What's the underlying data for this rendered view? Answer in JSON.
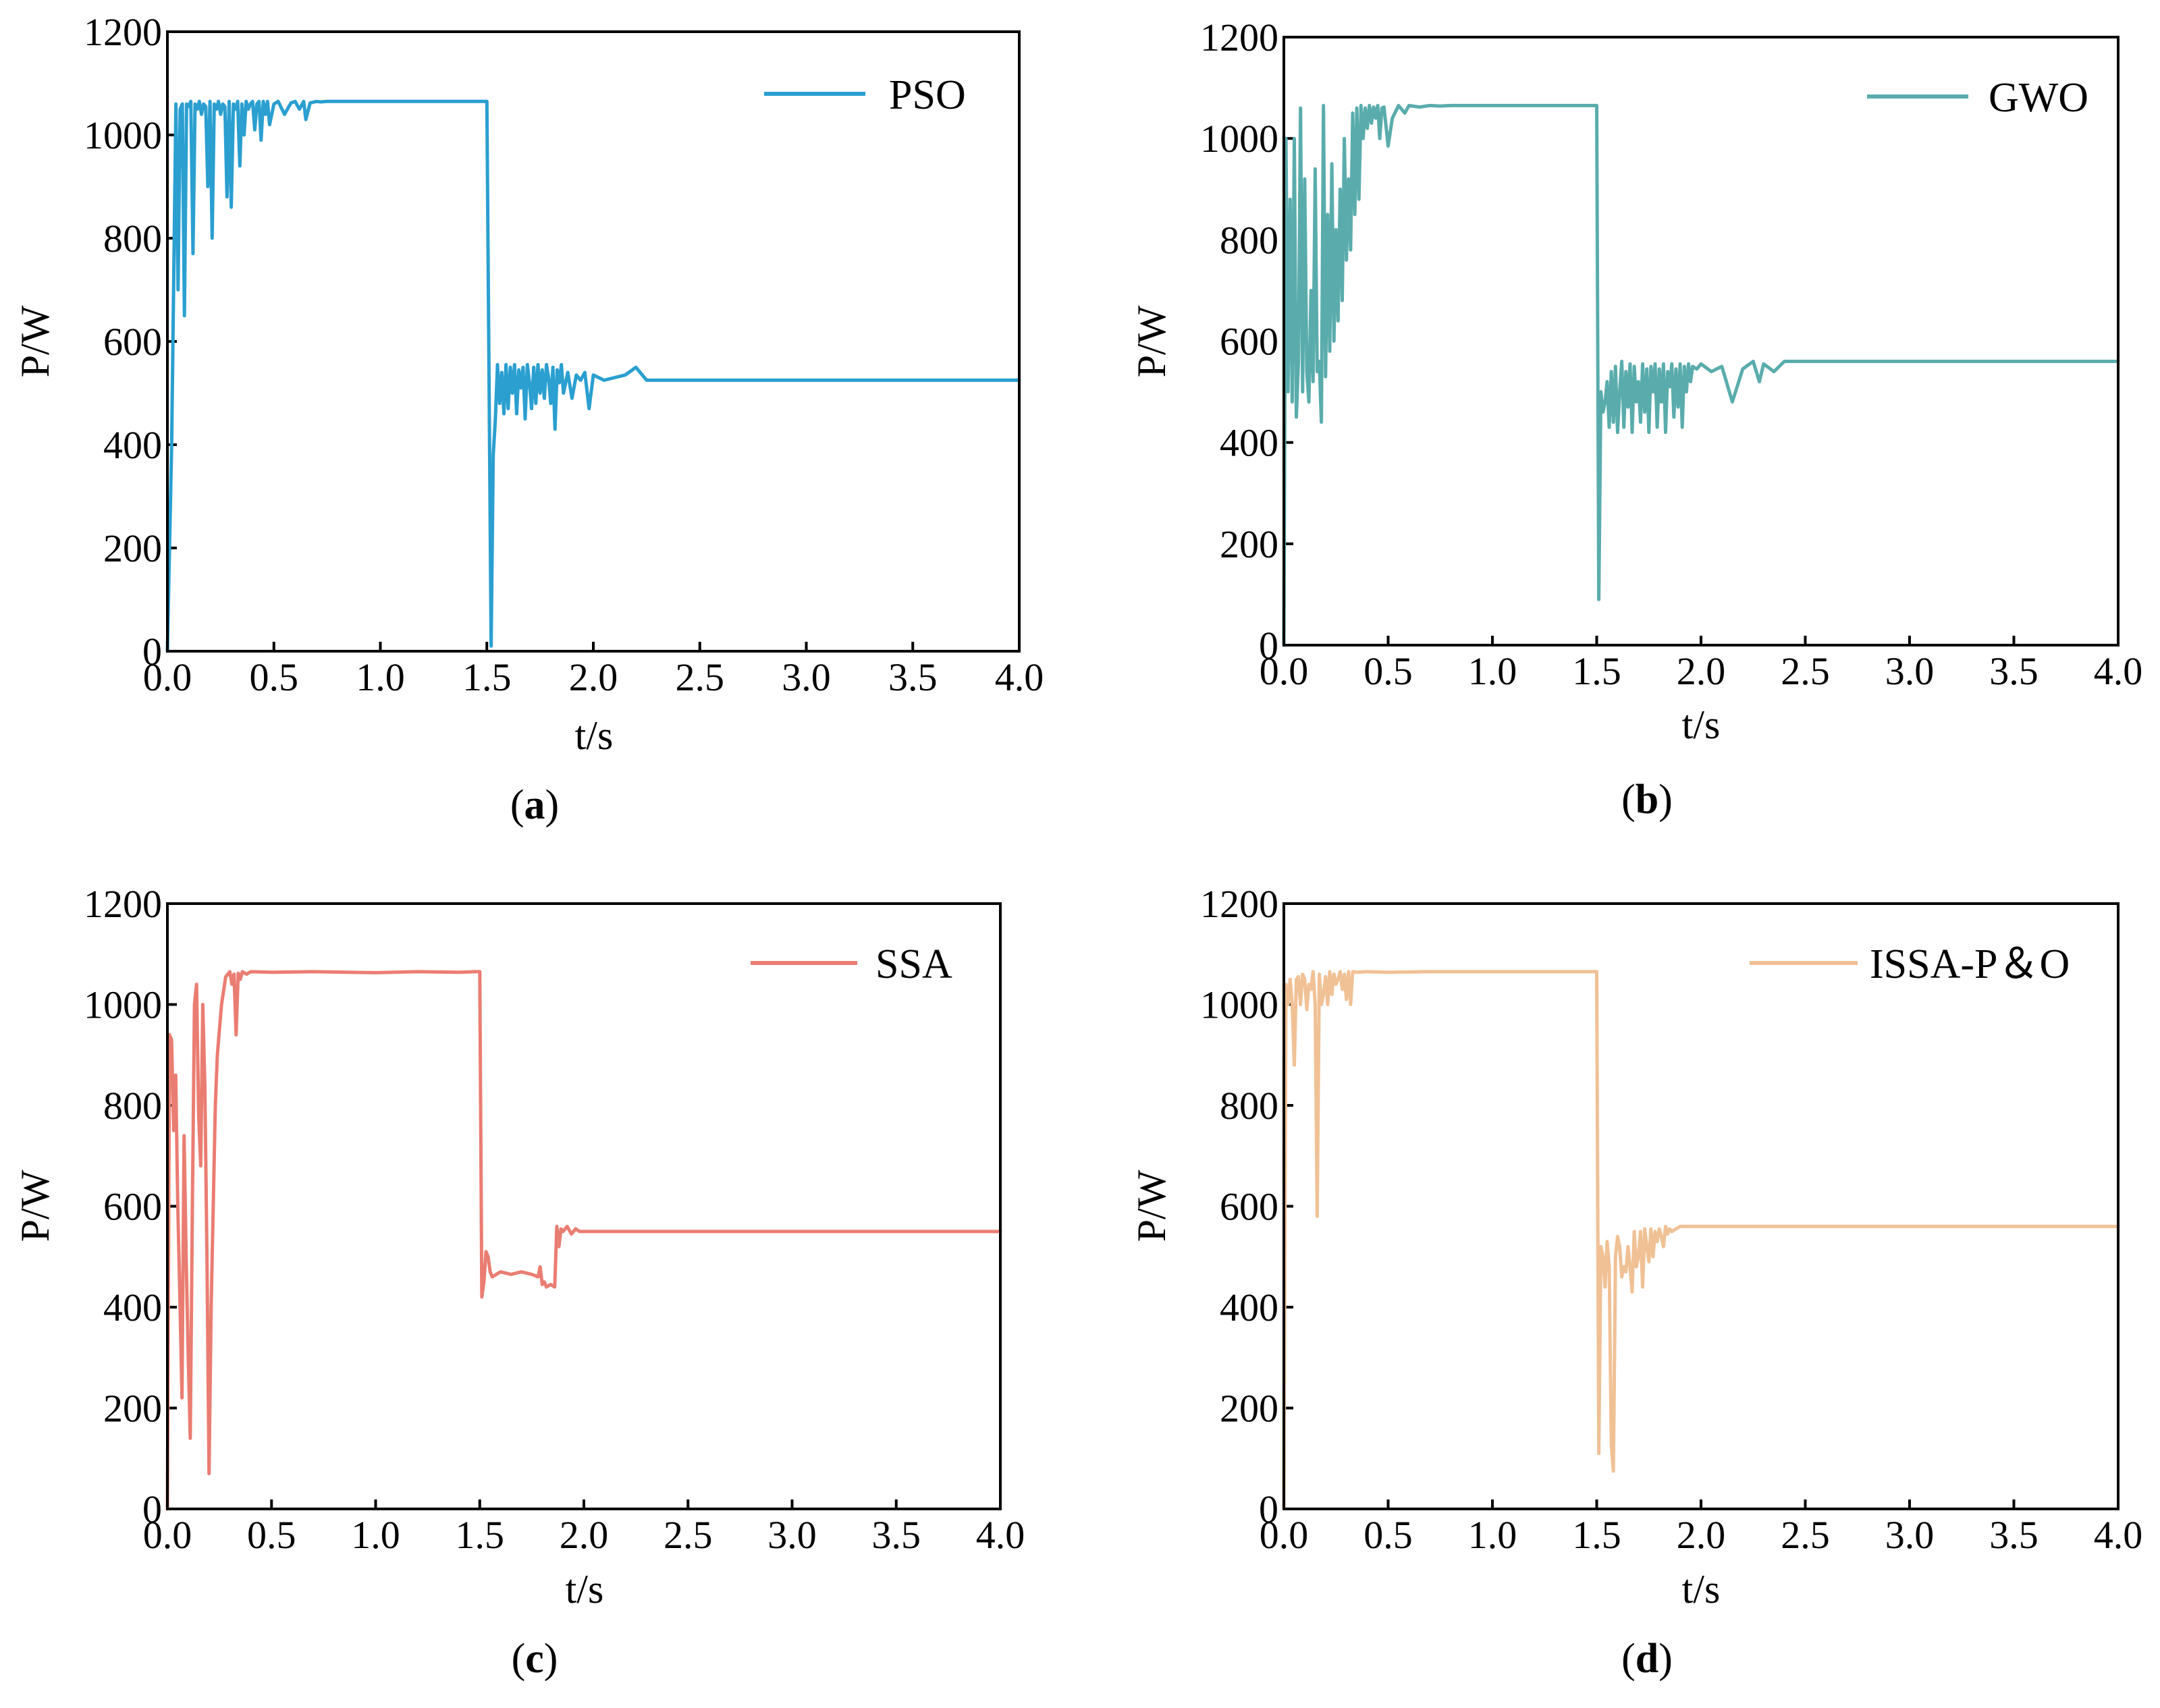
{
  "chart_data": [
    {
      "type": "line",
      "panel": "a",
      "caption_open": "(",
      "caption_letter": "a",
      "caption_close": ")",
      "xlabel": "t/s",
      "ylabel": "P/W",
      "xlim": [
        0,
        4.0
      ],
      "ylim": [
        0,
        1200
      ],
      "xticks": [
        "0.0",
        "0.5",
        "1.0",
        "1.5",
        "2.0",
        "2.5",
        "3.0",
        "3.5",
        "4.0"
      ],
      "yticks": [
        "0",
        "200",
        "400",
        "600",
        "800",
        "1000",
        "1200"
      ],
      "legend": "top-right",
      "color": "#2a9fd0",
      "series": [
        {
          "name": "PSO",
          "x": [
            0,
            0.02,
            0.04,
            0.05,
            0.06,
            0.07,
            0.08,
            0.09,
            0.1,
            0.11,
            0.12,
            0.13,
            0.14,
            0.15,
            0.16,
            0.17,
            0.18,
            0.19,
            0.2,
            0.21,
            0.22,
            0.23,
            0.24,
            0.25,
            0.26,
            0.27,
            0.28,
            0.29,
            0.3,
            0.31,
            0.32,
            0.33,
            0.34,
            0.35,
            0.36,
            0.37,
            0.38,
            0.39,
            0.4,
            0.41,
            0.42,
            0.43,
            0.44,
            0.45,
            0.46,
            0.47,
            0.48,
            0.5,
            0.52,
            0.55,
            0.58,
            0.6,
            0.62,
            0.64,
            0.65,
            0.67,
            0.7,
            0.72,
            0.75,
            0.8,
            1.0,
            1.2,
            1.4,
            1.49,
            1.5,
            1.52,
            1.53,
            1.54,
            1.55,
            1.56,
            1.57,
            1.58,
            1.59,
            1.6,
            1.61,
            1.62,
            1.63,
            1.64,
            1.65,
            1.66,
            1.67,
            1.68,
            1.69,
            1.7,
            1.71,
            1.72,
            1.73,
            1.74,
            1.75,
            1.76,
            1.77,
            1.78,
            1.79,
            1.8,
            1.81,
            1.82,
            1.83,
            1.84,
            1.85,
            1.86,
            1.88,
            1.9,
            1.92,
            1.94,
            1.96,
            1.98,
            2.0,
            2.05,
            2.1,
            2.15,
            2.2,
            2.22,
            2.25,
            2.3,
            2.5,
            3.0,
            3.5,
            4.0
          ],
          "y": [
            0,
            400,
            1060,
            700,
            1050,
            1060,
            650,
            1060,
            1055,
            1065,
            770,
            1060,
            1050,
            1065,
            1040,
            1060,
            1055,
            900,
            1065,
            800,
            1060,
            1050,
            1065,
            1040,
            1060,
            1055,
            880,
            1065,
            860,
            1060,
            1050,
            1065,
            940,
            1060,
            1000,
            1065,
            1050,
            1060,
            1065,
            1010,
            1060,
            1065,
            990,
            1065,
            1040,
            1065,
            1020,
            1060,
            1065,
            1040,
            1062,
            1065,
            1050,
            1065,
            1030,
            1062,
            1065,
            1064,
            1065,
            1065,
            1065,
            1065,
            1065,
            1065,
            1065,
            10,
            380,
            450,
            555,
            480,
            540,
            460,
            555,
            470,
            550,
            500,
            555,
            460,
            545,
            510,
            550,
            450,
            555,
            520,
            470,
            550,
            480,
            555,
            500,
            545,
            490,
            555,
            530,
            480,
            550,
            430,
            545,
            520,
            555,
            500,
            540,
            490,
            535,
            525,
            540,
            470,
            535,
            525,
            530,
            535,
            550,
            540,
            525,
            525,
            525,
            525,
            525,
            525
          ]
        }
      ]
    },
    {
      "type": "line",
      "panel": "b",
      "caption_open": "(",
      "caption_letter": "b",
      "caption_close": ")",
      "xlabel": "t/s",
      "ylabel": "P/W",
      "xlim": [
        0,
        4.0
      ],
      "ylim": [
        0,
        1200
      ],
      "xticks": [
        "0.0",
        "0.5",
        "1.0",
        "1.5",
        "2.0",
        "2.5",
        "3.0",
        "3.5",
        "4.0"
      ],
      "yticks": [
        "0",
        "200",
        "400",
        "600",
        "800",
        "1000",
        "1200"
      ],
      "legend": "top-right",
      "color": "#5aacac",
      "series": [
        {
          "name": "GWO",
          "x": [
            0,
            0.01,
            0.02,
            0.03,
            0.04,
            0.05,
            0.06,
            0.07,
            0.08,
            0.09,
            0.1,
            0.11,
            0.12,
            0.13,
            0.14,
            0.15,
            0.16,
            0.17,
            0.18,
            0.19,
            0.2,
            0.21,
            0.22,
            0.23,
            0.24,
            0.25,
            0.26,
            0.27,
            0.28,
            0.29,
            0.3,
            0.31,
            0.32,
            0.33,
            0.34,
            0.35,
            0.36,
            0.37,
            0.38,
            0.39,
            0.4,
            0.41,
            0.42,
            0.43,
            0.44,
            0.45,
            0.46,
            0.47,
            0.48,
            0.5,
            0.52,
            0.55,
            0.58,
            0.6,
            0.65,
            0.7,
            0.75,
            0.8,
            1.0,
            1.2,
            1.4,
            1.49,
            1.5,
            1.51,
            1.52,
            1.53,
            1.54,
            1.55,
            1.56,
            1.57,
            1.58,
            1.59,
            1.6,
            1.61,
            1.62,
            1.63,
            1.64,
            1.65,
            1.66,
            1.67,
            1.68,
            1.69,
            1.7,
            1.71,
            1.72,
            1.73,
            1.74,
            1.75,
            1.76,
            1.77,
            1.78,
            1.79,
            1.8,
            1.81,
            1.82,
            1.83,
            1.84,
            1.85,
            1.86,
            1.87,
            1.88,
            1.89,
            1.9,
            1.91,
            1.92,
            1.93,
            1.94,
            1.95,
            1.96,
            1.98,
            2.0,
            2.05,
            2.1,
            2.15,
            2.2,
            2.25,
            2.28,
            2.3,
            2.35,
            2.4,
            2.5,
            3.0,
            3.5,
            4.0
          ],
          "y": [
            0,
            1000,
            500,
            880,
            480,
            1000,
            450,
            560,
            1060,
            500,
            920,
            540,
            480,
            700,
            520,
            940,
            540,
            560,
            440,
            1065,
            530,
            850,
            580,
            950,
            600,
            820,
            640,
            900,
            680,
            1000,
            760,
            920,
            780,
            1050,
            850,
            1060,
            880,
            1065,
            1000,
            1060,
            1020,
            1065,
            1030,
            1062,
            1040,
            1065,
            1000,
            1060,
            1062,
            985,
            1040,
            1065,
            1050,
            1065,
            1062,
            1065,
            1064,
            1065,
            1065,
            1065,
            1065,
            1065,
            1065,
            90,
            500,
            460,
            480,
            520,
            430,
            540,
            440,
            550,
            420,
            500,
            560,
            430,
            540,
            470,
            555,
            420,
            550,
            480,
            520,
            440,
            555,
            460,
            545,
            420,
            550,
            500,
            555,
            430,
            545,
            480,
            555,
            420,
            540,
            510,
            555,
            450,
            545,
            470,
            555,
            430,
            550,
            500,
            555,
            520,
            550,
            545,
            555,
            540,
            550,
            480,
            545,
            560,
            520,
            555,
            540,
            560,
            560,
            560,
            560,
            560
          ]
        }
      ]
    },
    {
      "type": "line",
      "panel": "c",
      "caption_open": "(",
      "caption_letter": "c",
      "caption_close": ")",
      "xlabel": "t/s",
      "ylabel": "P/W",
      "xlim": [
        0,
        4.0
      ],
      "ylim": [
        0,
        1200
      ],
      "xticks": [
        "0.0",
        "0.5",
        "1.0",
        "1.5",
        "2.0",
        "2.5",
        "3.0",
        "3.5",
        "4.0"
      ],
      "yticks": [
        "0",
        "200",
        "400",
        "600",
        "800",
        "1000",
        "1200"
      ],
      "legend": "top-right",
      "color": "#ea7d72",
      "series": [
        {
          "name": "SSA",
          "x": [
            0,
            0.01,
            0.02,
            0.03,
            0.04,
            0.05,
            0.06,
            0.07,
            0.08,
            0.09,
            0.1,
            0.11,
            0.12,
            0.13,
            0.14,
            0.15,
            0.16,
            0.17,
            0.18,
            0.19,
            0.2,
            0.21,
            0.22,
            0.23,
            0.24,
            0.26,
            0.28,
            0.3,
            0.31,
            0.32,
            0.33,
            0.34,
            0.35,
            0.36,
            0.38,
            0.4,
            0.5,
            0.7,
            1.0,
            1.2,
            1.4,
            1.48,
            1.49,
            1.5,
            1.51,
            1.52,
            1.53,
            1.54,
            1.55,
            1.56,
            1.58,
            1.6,
            1.65,
            1.7,
            1.75,
            1.78,
            1.79,
            1.8,
            1.81,
            1.82,
            1.84,
            1.86,
            1.87,
            1.88,
            1.89,
            1.9,
            1.92,
            1.94,
            1.96,
            1.98,
            2.0,
            2.05,
            2.1,
            2.15,
            2.2,
            2.3,
            2.5,
            3.0,
            3.5,
            4.0
          ],
          "y": [
            0,
            940,
            930,
            750,
            860,
            600,
            420,
            220,
            740,
            500,
            300,
            140,
            600,
            1000,
            1040,
            780,
            680,
            1000,
            840,
            500,
            70,
            400,
            600,
            800,
            900,
            1000,
            1055,
            1065,
            1040,
            1060,
            940,
            1062,
            1050,
            1065,
            1060,
            1065,
            1064,
            1065,
            1063,
            1065,
            1064,
            1065,
            1065,
            1065,
            420,
            450,
            510,
            500,
            470,
            460,
            465,
            470,
            465,
            470,
            465,
            460,
            480,
            445,
            450,
            440,
            445,
            440,
            560,
            520,
            555,
            550,
            560,
            545,
            555,
            550,
            550,
            550,
            550,
            550,
            550,
            550,
            550,
            550,
            550,
            550
          ]
        }
      ]
    },
    {
      "type": "line",
      "panel": "d",
      "caption_open": "(",
      "caption_letter": "d",
      "caption_close": ")",
      "xlabel": "t/s",
      "ylabel": "P/W",
      "xlim": [
        0,
        4.0
      ],
      "ylim": [
        0,
        1200
      ],
      "xticks": [
        "0.0",
        "0.5",
        "1.0",
        "1.5",
        "2.0",
        "2.5",
        "3.0",
        "3.5",
        "4.0"
      ],
      "yticks": [
        "0",
        "200",
        "400",
        "600",
        "800",
        "1000",
        "1200"
      ],
      "legend": "top-right",
      "color": "#f0c195",
      "series": [
        {
          "name": "ISSA-P＆O",
          "x": [
            0,
            0.01,
            0.02,
            0.03,
            0.04,
            0.05,
            0.06,
            0.07,
            0.08,
            0.09,
            0.1,
            0.11,
            0.12,
            0.13,
            0.14,
            0.15,
            0.16,
            0.17,
            0.18,
            0.19,
            0.2,
            0.21,
            0.22,
            0.23,
            0.24,
            0.25,
            0.26,
            0.27,
            0.28,
            0.29,
            0.3,
            0.31,
            0.32,
            0.33,
            0.35,
            0.4,
            0.5,
            0.7,
            1.0,
            1.2,
            1.4,
            1.49,
            1.5,
            1.51,
            1.52,
            1.53,
            1.54,
            1.55,
            1.56,
            1.57,
            1.58,
            1.59,
            1.6,
            1.61,
            1.62,
            1.63,
            1.64,
            1.65,
            1.66,
            1.67,
            1.68,
            1.69,
            1.7,
            1.71,
            1.72,
            1.73,
            1.74,
            1.75,
            1.76,
            1.77,
            1.78,
            1.79,
            1.8,
            1.81,
            1.82,
            1.83,
            1.84,
            1.85,
            1.86,
            1.88,
            1.9,
            2.0,
            2.5,
            3.0,
            3.5,
            4.0
          ],
          "y": [
            0,
            1040,
            1000,
            1050,
            1000,
            880,
            1050,
            1055,
            1000,
            1060,
            1050,
            990,
            1040,
            1030,
            1065,
            1000,
            580,
            1060,
            1000,
            1020,
            1055,
            1000,
            1065,
            1020,
            1060,
            1040,
            1050,
            1065,
            1030,
            1060,
            1010,
            1065,
            1000,
            1065,
            1064,
            1065,
            1064,
            1065,
            1065,
            1065,
            1065,
            1065,
            1065,
            110,
            520,
            500,
            440,
            530,
            480,
            130,
            75,
            500,
            540,
            520,
            460,
            480,
            470,
            520,
            480,
            430,
            550,
            480,
            500,
            550,
            440,
            555,
            520,
            490,
            555,
            500,
            550,
            530,
            555,
            540,
            520,
            560,
            545,
            555,
            550,
            555,
            560,
            560,
            560,
            560,
            560,
            560
          ]
        }
      ]
    }
  ]
}
